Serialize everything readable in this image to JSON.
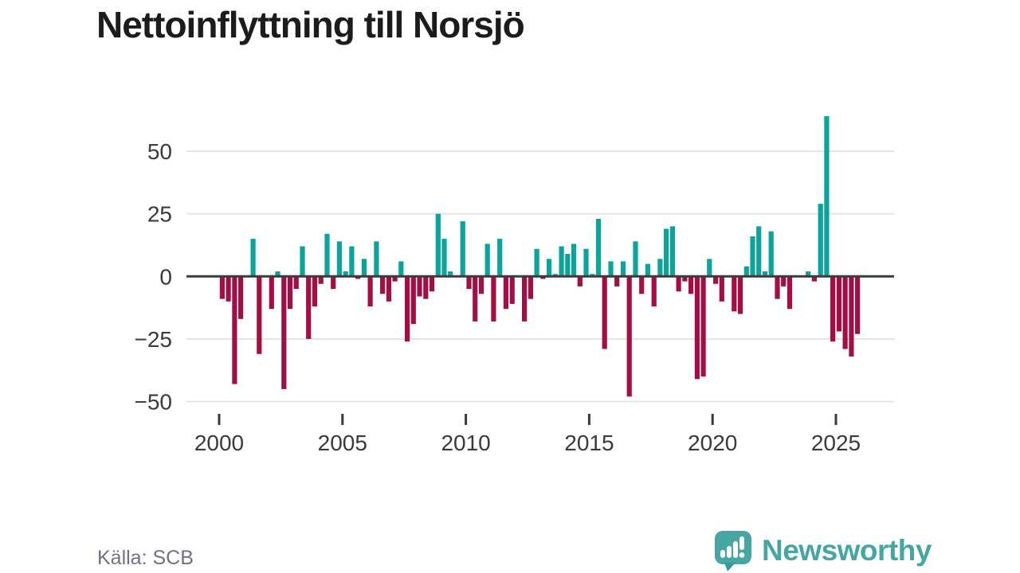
{
  "title": "Nettoinflyttning till Norsjö",
  "source": "Källa: SCB",
  "logo": {
    "text": "Newsworthy",
    "icon": "speech-bubble-bar-chart-icon"
  },
  "chart_data": {
    "type": "bar",
    "title": "Nettoinflyttning till Norsjö",
    "frequency": "quarterly",
    "start_year": 2000,
    "values": [
      -9,
      -10,
      -43,
      -17,
      0,
      15,
      -31,
      0,
      -13,
      2,
      -45,
      -13,
      -5,
      12,
      -25,
      -12,
      -3,
      17,
      -5,
      14,
      2,
      12,
      -1,
      7,
      -12,
      14,
      -7,
      -10,
      -2,
      6,
      -26,
      -19,
      -8,
      -9,
      -6,
      25,
      15,
      2,
      0,
      22,
      -5,
      -18,
      -7,
      13,
      -18,
      15,
      -13,
      -11,
      0,
      -18,
      -9,
      11,
      -1,
      7,
      1,
      12,
      9,
      13,
      -4,
      11,
      1,
      23,
      -29,
      6,
      -4,
      6,
      -48,
      14,
      -7,
      5,
      -12,
      7,
      19,
      20,
      -6,
      -2,
      -7,
      -41,
      -40,
      7,
      -3,
      -10,
      0,
      -14,
      -15,
      4,
      16,
      20,
      2,
      18,
      -9,
      -4,
      -13,
      0,
      0,
      2,
      -2,
      29,
      64,
      -26,
      -22,
      -29,
      -32,
      -23
    ],
    "x_tick_years": [
      2000,
      2005,
      2010,
      2015,
      2020,
      2025
    ],
    "y_ticks": [
      50,
      25,
      0,
      -25,
      -50
    ],
    "ylim": [
      -50,
      65
    ],
    "grid": "horizontal",
    "legend": "none",
    "colors": {
      "positive": "#0ba49a",
      "negative": "#a50d45",
      "zero_line": "#3b3b3b",
      "grid_line": "#e4e4e4",
      "tick_text": "#3a3a3a"
    }
  }
}
